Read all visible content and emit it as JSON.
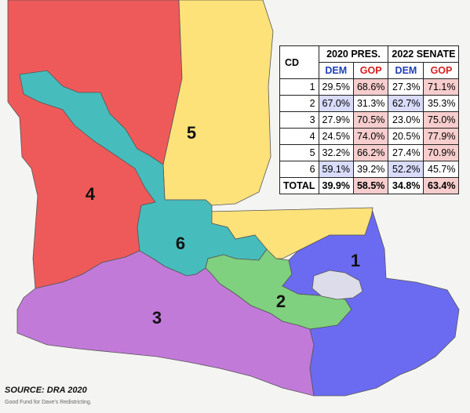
{
  "map": {
    "district_labels": [
      "1",
      "2",
      "3",
      "4",
      "5",
      "6"
    ],
    "colors": {
      "d1": "#6b6bf2",
      "d2": "#7fd07f",
      "d3": "#c27ad9",
      "d4": "#ee5a5a",
      "d5": "#fde27a",
      "d6": "#47bcbc",
      "new_orleans": "#dcdcea",
      "border": "#555555"
    }
  },
  "table": {
    "headers": {
      "cd": "CD",
      "pres": "2020 PRES.",
      "senate": "2022 SENATE",
      "dem": "DEM",
      "gop": "GOP"
    },
    "rows": [
      {
        "cd": "1",
        "pres_dem": "29.5%",
        "pres_gop": "68.6%",
        "sen_dem": "27.3%",
        "sen_gop": "71.1%"
      },
      {
        "cd": "2",
        "pres_dem": "67.0%",
        "pres_gop": "31.3%",
        "sen_dem": "62.7%",
        "sen_gop": "35.3%"
      },
      {
        "cd": "3",
        "pres_dem": "27.9%",
        "pres_gop": "70.5%",
        "sen_dem": "23.0%",
        "sen_gop": "75.0%"
      },
      {
        "cd": "4",
        "pres_dem": "24.5%",
        "pres_gop": "74.0%",
        "sen_dem": "20.5%",
        "sen_gop": "77.9%"
      },
      {
        "cd": "5",
        "pres_dem": "32.2%",
        "pres_gop": "66.2%",
        "sen_dem": "27.4%",
        "sen_gop": "70.9%"
      },
      {
        "cd": "6",
        "pres_dem": "59.1%",
        "pres_gop": "39.2%",
        "sen_dem": "52.2%",
        "sen_gop": "45.7%"
      }
    ],
    "total": {
      "label": "TOTAL",
      "pres_dem": "39.9%",
      "pres_gop": "58.5%",
      "sen_dem": "34.8%",
      "sen_gop": "63.4%"
    }
  },
  "source": "SOURCE: DRA 2020",
  "credit": "Good Fund for Dave's Redistricting."
}
